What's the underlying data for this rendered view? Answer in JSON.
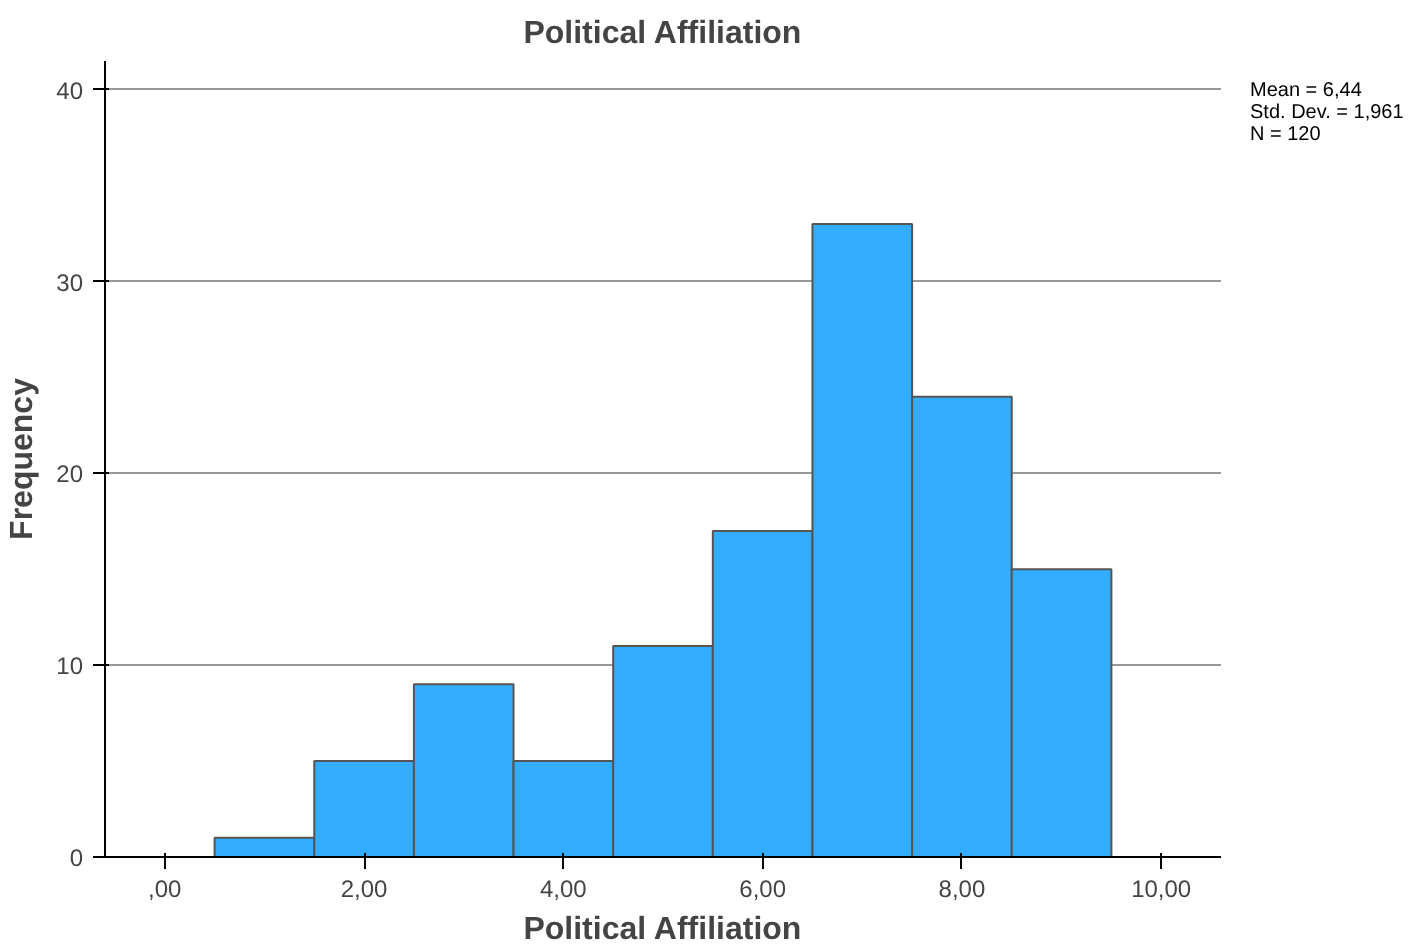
{
  "chart_data": {
    "type": "histogram",
    "title": "Political Affiliation",
    "xlabel": "Political Affiliation",
    "ylabel": "Frequency",
    "bins": [
      0.5,
      1.5,
      2.5,
      3.5,
      4.5,
      5.5,
      6.5,
      7.5,
      8.5,
      9.5
    ],
    "values": [
      1,
      5,
      9,
      5,
      11,
      17,
      33,
      24,
      15
    ],
    "color": "#33adff",
    "xlim": [
      -0.6,
      10.6
    ],
    "ylim": [
      0,
      41.5
    ],
    "xticks": [
      {
        "value": 0,
        "label": ",00"
      },
      {
        "value": 2,
        "label": "2,00"
      },
      {
        "value": 4,
        "label": "4,00"
      },
      {
        "value": 6,
        "label": "6,00"
      },
      {
        "value": 8,
        "label": "8,00"
      },
      {
        "value": 10,
        "label": "10,00"
      }
    ],
    "yticks": [
      0,
      10,
      20,
      30,
      40
    ],
    "grid": "y",
    "annotations": [
      "Mean = 6,44",
      "Std. Dev. = 1,961",
      "N = 120"
    ]
  }
}
